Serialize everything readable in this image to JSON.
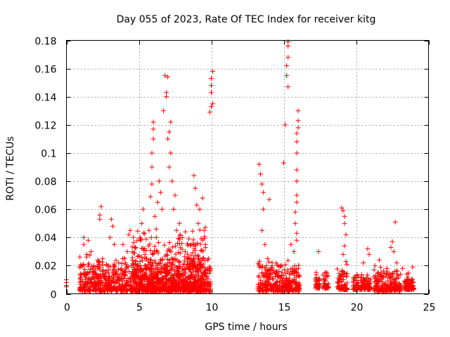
{
  "chart_data": {
    "type": "scatter",
    "title": "Day 055 of 2023, Rate Of TEC Index for receiver kitg",
    "xlabel": "GPS time / hours",
    "ylabel": "ROTI / TECUs",
    "xlim": [
      0,
      25
    ],
    "ylim": [
      0,
      0.18
    ],
    "xticks": [
      0,
      5,
      10,
      15,
      20,
      25
    ],
    "xtick_labels": [
      "0",
      "5",
      "10",
      "15",
      "20",
      "25"
    ],
    "yticks": [
      0,
      0.02,
      0.04,
      0.06,
      0.08,
      0.1,
      0.12,
      0.14,
      0.16,
      0.18
    ],
    "ytick_labels": [
      "0",
      "0.02",
      "0.04",
      "0.06",
      "0.08",
      "0.1",
      "0.12",
      "0.14",
      "0.16",
      "0.18"
    ],
    "grid": true,
    "marker": "+",
    "color": "#ff0000",
    "series": [
      {
        "name": "ROTI",
        "points": [
          [
            0.0,
            0.006
          ],
          [
            0.0,
            0.005
          ],
          [
            0.0,
            0.008
          ],
          [
            0.0,
            0.01
          ],
          [
            1.0,
            0.01
          ],
          [
            1.1,
            0.02
          ],
          [
            1.2,
            0.035
          ],
          [
            1.2,
            0.04
          ],
          [
            1.4,
            0.028
          ],
          [
            1.5,
            0.038
          ],
          [
            1.6,
            0.015
          ],
          [
            1.7,
            0.03
          ],
          [
            1.8,
            0.012
          ],
          [
            1.9,
            0.02
          ],
          [
            2.1,
            0.008
          ],
          [
            2.2,
            0.018
          ],
          [
            2.3,
            0.053
          ],
          [
            2.3,
            0.056
          ],
          [
            2.4,
            0.062
          ],
          [
            2.5,
            0.025
          ],
          [
            2.6,
            0.012
          ],
          [
            2.8,
            0.02
          ],
          [
            2.9,
            0.017
          ],
          [
            3.0,
            0.04
          ],
          [
            3.1,
            0.053
          ],
          [
            3.2,
            0.048
          ],
          [
            3.3,
            0.035
          ],
          [
            3.4,
            0.015
          ],
          [
            3.6,
            0.022
          ],
          [
            3.8,
            0.018
          ],
          [
            3.9,
            0.035
          ],
          [
            4.0,
            0.025
          ],
          [
            4.2,
            0.03
          ],
          [
            4.3,
            0.042
          ],
          [
            4.4,
            0.045
          ],
          [
            4.5,
            0.02
          ],
          [
            4.6,
            0.015
          ],
          [
            4.8,
            0.023
          ],
          [
            4.9,
            0.018
          ],
          [
            5.0,
            0.027
          ],
          [
            5.1,
            0.038
          ],
          [
            5.2,
            0.05
          ],
          [
            5.3,
            0.06
          ],
          [
            5.4,
            0.032
          ],
          [
            5.5,
            0.025
          ],
          [
            5.7,
            0.045
          ],
          [
            5.8,
            0.069
          ],
          [
            5.9,
            0.078
          ],
          [
            5.9,
            0.09
          ],
          [
            5.9,
            0.1
          ],
          [
            6.0,
            0.11
          ],
          [
            6.0,
            0.117
          ],
          [
            6.0,
            0.122
          ],
          [
            6.1,
            0.055
          ],
          [
            6.2,
            0.04
          ],
          [
            6.3,
            0.065
          ],
          [
            6.4,
            0.08
          ],
          [
            6.5,
            0.072
          ],
          [
            6.6,
            0.06
          ],
          [
            6.7,
            0.13
          ],
          [
            6.8,
            0.155
          ],
          [
            6.9,
            0.14
          ],
          [
            6.9,
            0.143
          ],
          [
            7.0,
            0.154
          ],
          [
            7.0,
            0.11
          ],
          [
            7.1,
            0.115
          ],
          [
            7.1,
            0.09
          ],
          [
            7.2,
            0.1
          ],
          [
            7.2,
            0.122
          ],
          [
            7.3,
            0.08
          ],
          [
            7.4,
            0.06
          ],
          [
            7.5,
            0.07
          ],
          [
            7.6,
            0.045
          ],
          [
            7.8,
            0.05
          ],
          [
            8.0,
            0.04
          ],
          [
            8.2,
            0.03
          ],
          [
            8.4,
            0.025
          ],
          [
            8.6,
            0.035
          ],
          [
            8.8,
            0.084
          ],
          [
            8.9,
            0.075
          ],
          [
            9.0,
            0.063
          ],
          [
            9.1,
            0.05
          ],
          [
            9.2,
            0.06
          ],
          [
            9.4,
            0.068
          ],
          [
            9.5,
            0.045
          ],
          [
            9.6,
            0.035
          ],
          [
            9.8,
            0.025
          ],
          [
            9.9,
            0.129
          ],
          [
            10.0,
            0.133
          ],
          [
            10.0,
            0.143
          ],
          [
            10.0,
            0.148
          ],
          [
            10.0,
            0.153
          ],
          [
            10.1,
            0.158
          ],
          [
            10.1,
            0.135
          ],
          [
            13.3,
            0.092
          ],
          [
            13.4,
            0.085
          ],
          [
            13.5,
            0.078
          ],
          [
            13.6,
            0.072
          ],
          [
            13.6,
            0.06
          ],
          [
            13.5,
            0.045
          ],
          [
            13.7,
            0.035
          ],
          [
            13.9,
            0.025
          ],
          [
            14.0,
            0.067
          ],
          [
            14.2,
            0.02
          ],
          [
            14.5,
            0.015
          ],
          [
            14.8,
            0.02
          ],
          [
            15.0,
            0.093
          ],
          [
            15.1,
            0.12
          ],
          [
            15.2,
            0.155
          ],
          [
            15.2,
            0.162
          ],
          [
            15.3,
            0.168
          ],
          [
            15.3,
            0.176
          ],
          [
            15.3,
            0.179
          ],
          [
            15.3,
            0.147
          ],
          [
            15.5,
            0.035
          ],
          [
            15.7,
            0.03
          ],
          [
            15.9,
            0.1
          ],
          [
            15.9,
            0.108
          ],
          [
            15.9,
            0.114
          ],
          [
            16.0,
            0.118
          ],
          [
            16.0,
            0.123
          ],
          [
            16.0,
            0.13
          ],
          [
            15.9,
            0.088
          ],
          [
            15.9,
            0.08
          ],
          [
            15.9,
            0.07
          ],
          [
            15.9,
            0.065
          ],
          [
            15.8,
            0.058
          ],
          [
            15.8,
            0.05
          ],
          [
            15.9,
            0.043
          ],
          [
            15.9,
            0.038
          ],
          [
            17.4,
            0.03
          ],
          [
            19.0,
            0.061
          ],
          [
            19.1,
            0.059
          ],
          [
            19.2,
            0.055
          ],
          [
            19.2,
            0.05
          ],
          [
            19.3,
            0.042
          ],
          [
            19.2,
            0.034
          ],
          [
            19.1,
            0.028
          ],
          [
            19.3,
            0.023
          ],
          [
            20.5,
            0.022
          ],
          [
            20.8,
            0.032
          ],
          [
            20.9,
            0.028
          ],
          [
            21.3,
            0.02
          ],
          [
            21.6,
            0.024
          ],
          [
            22.4,
            0.033
          ],
          [
            22.5,
            0.037
          ],
          [
            22.6,
            0.03
          ],
          [
            22.7,
            0.051
          ],
          [
            22.8,
            0.022
          ],
          [
            23.2,
            0.018
          ],
          [
            23.5,
            0.014
          ],
          [
            23.9,
            0.019
          ]
        ],
        "dense_clusters": [
          {
            "x": [
              0.9,
              9.95
            ],
            "y": [
              0.002,
              0.028
            ]
          },
          {
            "x": [
              4.5,
              9.6
            ],
            "y": [
              0.002,
              0.05
            ]
          },
          {
            "x": [
              13.2,
              16.1
            ],
            "y": [
              0.002,
              0.025
            ]
          },
          {
            "x": [
              17.2,
              17.5
            ],
            "y": [
              0.004,
              0.017
            ]
          },
          {
            "x": [
              17.7,
              18.1
            ],
            "y": [
              0.004,
              0.017
            ]
          },
          {
            "x": [
              18.7,
              19.4
            ],
            "y": [
              0.003,
              0.022
            ]
          },
          {
            "x": [
              19.8,
              21.0
            ],
            "y": [
              0.003,
              0.016
            ]
          },
          {
            "x": [
              21.2,
              23.1
            ],
            "y": [
              0.002,
              0.02
            ]
          },
          {
            "x": [
              23.3,
              24.0
            ],
            "y": [
              0.003,
              0.016
            ]
          }
        ]
      }
    ]
  }
}
